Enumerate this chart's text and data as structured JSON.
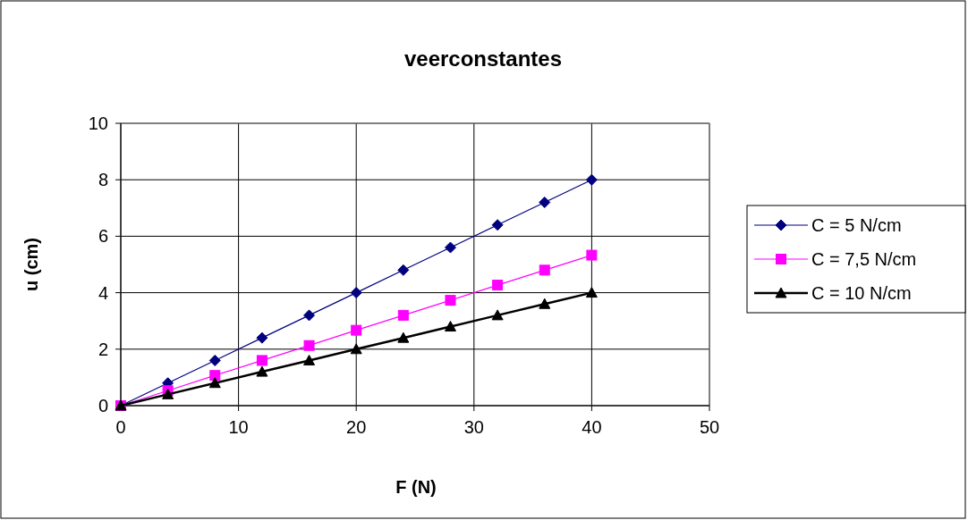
{
  "chart_data": {
    "type": "line",
    "title": "veerconstantes",
    "xlabel": "F (N)",
    "ylabel": "u (cm)",
    "x": [
      0,
      4,
      8,
      12,
      16,
      20,
      24,
      28,
      32,
      36,
      40
    ],
    "series": [
      {
        "name": "C = 5 N/cm",
        "color": "#000080",
        "marker": "diamond",
        "values": [
          0,
          0.8,
          1.6,
          2.4,
          3.2,
          4,
          4.8,
          5.6,
          6.4,
          7.2,
          8
        ]
      },
      {
        "name": "C = 7,5 N/cm",
        "color": "#ff00ff",
        "marker": "square",
        "values": [
          0,
          0.53,
          1.07,
          1.6,
          2.13,
          2.67,
          3.2,
          3.73,
          4.27,
          4.8,
          5.33
        ]
      },
      {
        "name": "C = 10 N/cm",
        "color": "#000000",
        "marker": "triangle",
        "values": [
          0,
          0.4,
          0.8,
          1.2,
          1.6,
          2,
          2.4,
          2.8,
          3.2,
          3.6,
          4
        ]
      }
    ],
    "xlim": [
      0,
      50
    ],
    "xticks": [
      0,
      10,
      20,
      30,
      40,
      50
    ],
    "ylim": [
      0,
      10
    ],
    "yticks": [
      0,
      2,
      4,
      6,
      8,
      10
    ],
    "grid": true,
    "legend": "right",
    "line_style": "solid"
  }
}
